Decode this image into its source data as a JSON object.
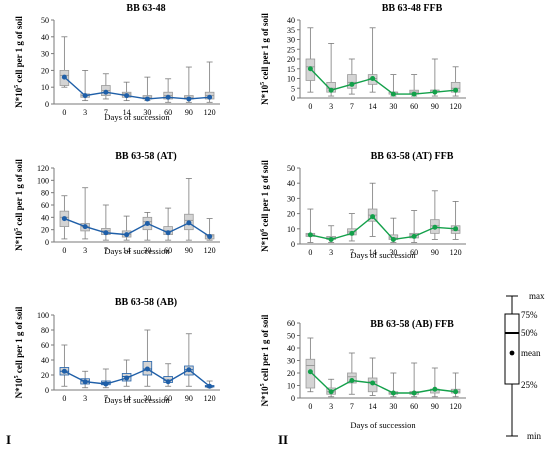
{
  "group_labels": [
    "I",
    "II"
  ],
  "legend": {
    "labels": [
      "max",
      "75%",
      "50%",
      "mean",
      "25%",
      "min"
    ]
  },
  "chart_data": [
    {
      "type": "boxplot",
      "title": "BB 63-48",
      "xlabel": "Days of succession",
      "ylabel": [
        "N*10",
        "5",
        " cell per 1 g of soil"
      ],
      "categories": [
        "0",
        "3",
        "7",
        "14",
        "30",
        "60",
        "90",
        "120"
      ],
      "ylim": [
        0,
        50
      ],
      "yticks": [
        0,
        10,
        20,
        30,
        40,
        50
      ],
      "color": "#1f5fa8",
      "box_fill": "#d4d4d4",
      "box_stroke": "#9a9a9a",
      "series": {
        "min": [
          10,
          2,
          3,
          2,
          2,
          1,
          1,
          1
        ],
        "q1": [
          11,
          4,
          5,
          4,
          3,
          3,
          3,
          3
        ],
        "median": [
          17,
          5,
          8,
          6,
          4,
          5,
          4,
          5
        ],
        "q3": [
          20,
          6,
          11,
          7,
          5,
          7,
          5,
          7
        ],
        "max": [
          40,
          20,
          18,
          13,
          16,
          15,
          22,
          25
        ],
        "mean": [
          16,
          5,
          7,
          5,
          3,
          4,
          3,
          4
        ]
      }
    },
    {
      "type": "boxplot",
      "title": "BB 63-48 FFB",
      "xlabel": "",
      "ylabel": [
        "N*10",
        "5",
        " cell per 1 g of soil"
      ],
      "categories": [
        "0",
        "3",
        "7",
        "14",
        "30",
        "60",
        "90",
        "120"
      ],
      "ylim": [
        0,
        40
      ],
      "yticks": [
        0,
        5,
        10,
        15,
        20,
        25,
        30,
        35,
        40
      ],
      "color": "#13a04a",
      "box_fill": "#d4d4d4",
      "box_stroke": "#9a9a9a",
      "series": {
        "min": [
          3,
          1,
          2,
          3,
          1,
          1,
          1,
          1
        ],
        "q1": [
          9,
          3,
          5,
          7,
          2,
          2,
          3,
          3
        ],
        "median": [
          16,
          5,
          8,
          10,
          3,
          3,
          4,
          5
        ],
        "q3": [
          20,
          8,
          12,
          12,
          3,
          4,
          4,
          8
        ],
        "max": [
          36,
          28,
          20,
          36,
          12,
          12,
          20,
          16
        ],
        "mean": [
          15,
          4,
          7,
          10,
          2,
          2,
          3,
          4
        ]
      }
    },
    {
      "type": "boxplot",
      "title": "BB 63-58 (AT)",
      "xlabel": "Days of succession",
      "ylabel": [
        "N*10",
        "5",
        " cell per 1 g of soil"
      ],
      "categories": [
        "0",
        "3",
        "7",
        "14",
        "30",
        "60",
        "90",
        "120"
      ],
      "ylim": [
        0,
        120
      ],
      "yticks": [
        0,
        20,
        40,
        60,
        80,
        100,
        120
      ],
      "color": "#1f5fa8",
      "box_fill": "#d4d4d4",
      "box_stroke": "#9a9a9a",
      "series": {
        "min": [
          5,
          5,
          3,
          3,
          3,
          3,
          3,
          3
        ],
        "q1": [
          25,
          18,
          12,
          8,
          20,
          12,
          20,
          5
        ],
        "median": [
          40,
          25,
          18,
          12,
          33,
          18,
          35,
          10
        ],
        "q3": [
          50,
          30,
          22,
          18,
          40,
          25,
          45,
          12
        ],
        "max": [
          75,
          88,
          60,
          42,
          48,
          55,
          103,
          38
        ],
        "mean": [
          38,
          25,
          15,
          12,
          30,
          15,
          31,
          9
        ]
      }
    },
    {
      "type": "boxplot",
      "title": "BB 63-58 (AT) FFB",
      "xlabel": "Days of succession",
      "ylabel": [
        "N*10",
        "6",
        " cell per 1 g of soil"
      ],
      "categories": [
        "0",
        "3",
        "7",
        "14",
        "30",
        "60",
        "90",
        "120"
      ],
      "ylim": [
        0,
        50
      ],
      "yticks": [
        0,
        10,
        20,
        30,
        40,
        50
      ],
      "color": "#13a04a",
      "box_fill": "#d4d4d4",
      "box_stroke": "#9a9a9a",
      "series": {
        "min": [
          1,
          1,
          2,
          5,
          1,
          1,
          3,
          3
        ],
        "q1": [
          5,
          3,
          6,
          15,
          3,
          4,
          7,
          7
        ],
        "median": [
          6,
          4,
          8,
          19,
          4,
          6,
          12,
          9
        ],
        "q3": [
          7,
          5,
          10,
          23,
          6,
          7,
          16,
          12
        ],
        "max": [
          23,
          12,
          20,
          40,
          17,
          22,
          35,
          28
        ],
        "mean": [
          6,
          3,
          7,
          18,
          3,
          5,
          11,
          10
        ]
      }
    },
    {
      "type": "boxplot",
      "title": "BB 63-58 (AB)",
      "xlabel": "Days of succession",
      "ylabel": [
        "N*10",
        "5",
        " cell per 1 g of soil"
      ],
      "categories": [
        "0",
        "3",
        "7",
        "14",
        "30",
        "60",
        "90",
        "120"
      ],
      "ylim": [
        0,
        100
      ],
      "yticks": [
        0,
        20,
        40,
        60,
        80,
        100
      ],
      "color": "#1f5fa8",
      "box_fill": "#d4d4d4",
      "box_stroke": "#1f5fa8",
      "series": {
        "min": [
          5,
          3,
          3,
          5,
          5,
          5,
          5,
          3
        ],
        "q1": [
          20,
          8,
          7,
          12,
          20,
          10,
          20,
          4
        ],
        "median": [
          25,
          12,
          10,
          18,
          28,
          13,
          27,
          5
        ],
        "q3": [
          30,
          15,
          12,
          22,
          38,
          18,
          32,
          6
        ],
        "max": [
          60,
          25,
          28,
          40,
          80,
          35,
          75,
          12
        ],
        "mean": [
          25,
          11,
          8,
          16,
          28,
          11,
          27,
          5
        ]
      }
    },
    {
      "type": "boxplot",
      "title": "BB 63-58 (AB) FFB",
      "xlabel": "Days of succession",
      "ylabel": [
        "N*10",
        "5",
        " cell per 1 g of soil"
      ],
      "categories": [
        "0",
        "3",
        "7",
        "14",
        "30",
        "60",
        "90",
        "120"
      ],
      "ylim": [
        0,
        60
      ],
      "yticks": [
        0,
        10,
        20,
        30,
        40,
        50,
        60
      ],
      "color": "#13a04a",
      "box_fill": "#d4d4d4",
      "box_stroke": "#9a9a9a",
      "series": {
        "min": [
          5,
          1,
          3,
          2,
          1,
          1,
          1,
          1
        ],
        "q1": [
          8,
          3,
          12,
          5,
          3,
          3,
          4,
          4
        ],
        "median": [
          26,
          5,
          17,
          13,
          4,
          5,
          7,
          5
        ],
        "q3": [
          31,
          8,
          20,
          16,
          5,
          5,
          7,
          7
        ],
        "max": [
          48,
          15,
          36,
          32,
          20,
          28,
          24,
          20
        ],
        "mean": [
          21,
          5,
          14,
          12,
          4,
          4,
          7,
          5
        ]
      }
    }
  ]
}
